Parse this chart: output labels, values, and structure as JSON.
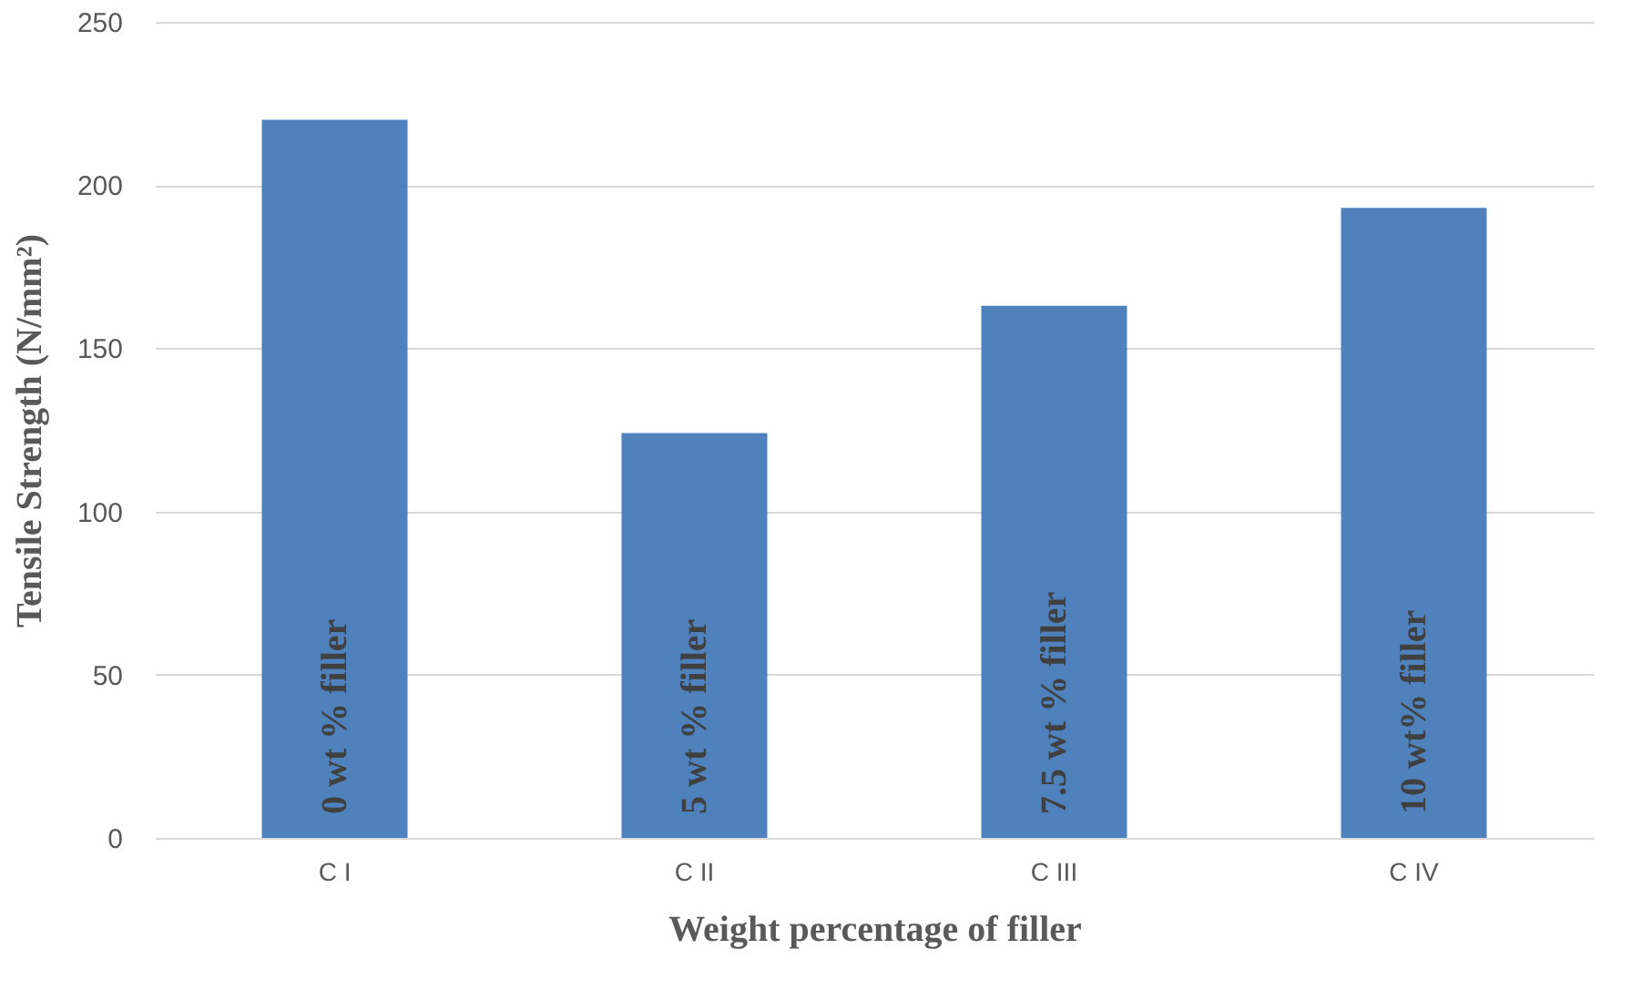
{
  "chart_data": {
    "type": "bar",
    "xlabel": "Weight percentage of filler",
    "ylabel": "Tensile Strength (N/mm²)",
    "categories": [
      "C I",
      "C II",
      "C III",
      "C IV"
    ],
    "values": [
      220,
      124,
      163,
      193
    ],
    "color": "#4f81bd",
    "ylim": [
      0,
      250
    ],
    "yticks": [
      0,
      50,
      100,
      150,
      200,
      250
    ],
    "grid": "y",
    "annotations": [
      "0 wt  % filler",
      "5 wt  % filler",
      "7.5 wt  % filler",
      "10 wt% filler"
    ]
  }
}
